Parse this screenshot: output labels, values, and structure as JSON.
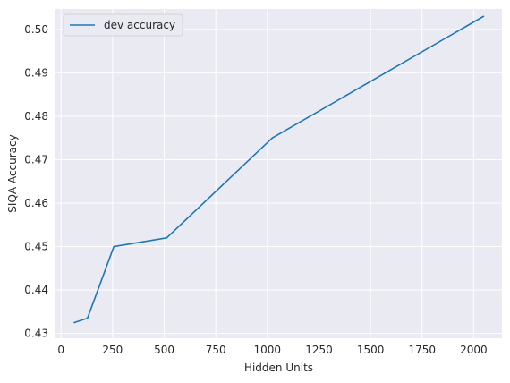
{
  "chart_data": {
    "type": "line",
    "xlabel": "Hidden Units",
    "ylabel": "SIQA Accuracy",
    "xlim": [
      -27,
      2137
    ],
    "ylim": [
      0.4289,
      0.5047
    ],
    "xticks": [
      0,
      250,
      500,
      750,
      1000,
      1250,
      1500,
      1750,
      2000
    ],
    "yticks": [
      0.43,
      0.44,
      0.45,
      0.46,
      0.47,
      0.48,
      0.49,
      0.5
    ],
    "ytick_labels": [
      "0.43",
      "0.44",
      "0.45",
      "0.46",
      "0.47",
      "0.48",
      "0.49",
      "0.50"
    ],
    "grid": true,
    "legend_position": "top-left",
    "series": [
      {
        "name": "dev accuracy",
        "color": "#1f77b4",
        "x": [
          64,
          128,
          256,
          512,
          1024,
          2048
        ],
        "y": [
          0.4325,
          0.4335,
          0.45,
          0.452,
          0.475,
          0.503
        ]
      }
    ]
  }
}
